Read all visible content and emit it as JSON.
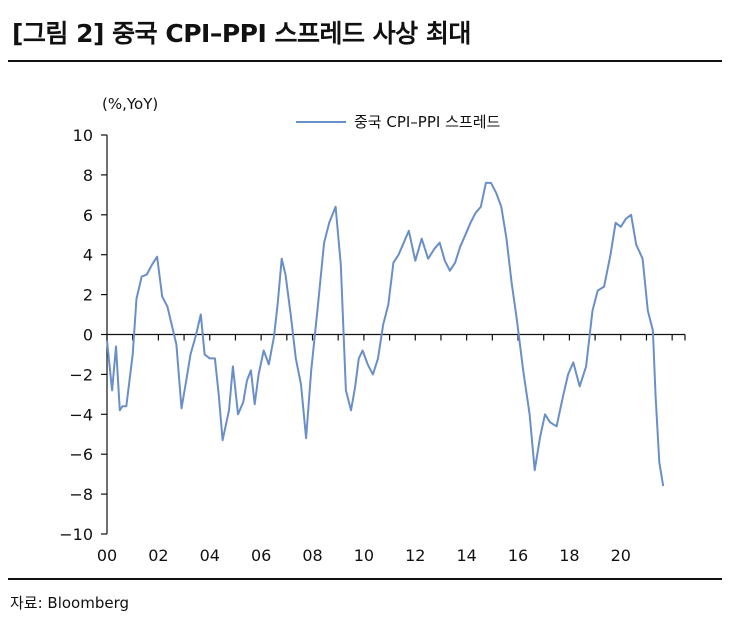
{
  "header": {
    "title": "[그림 2] 중국 CPI–PPI 스프레드 사상 최대"
  },
  "footer": {
    "source": "자료: Bloomberg"
  },
  "colors": {
    "series": "#6a8fc8",
    "axis": "#111111",
    "text": "#111111"
  },
  "chart_data": {
    "type": "line",
    "title": "",
    "ylabel": "(%,YoY)",
    "xlabel": "",
    "ylim": [
      -10,
      10
    ],
    "yticks": [
      -10,
      -8,
      -6,
      -4,
      -2,
      0,
      2,
      4,
      6,
      8,
      10
    ],
    "ytick_labels": [
      "−10",
      "−8",
      "−6",
      "−4",
      "−2",
      "0",
      "2",
      "4",
      "6",
      "8",
      "10"
    ],
    "xlim": [
      2000,
      2022.5
    ],
    "xticks": [
      2000,
      2002,
      2004,
      2006,
      2008,
      2010,
      2012,
      2014,
      2016,
      2018,
      2020
    ],
    "xtick_labels": [
      "00",
      "02",
      "04",
      "06",
      "08",
      "10",
      "12",
      "14",
      "16",
      "18",
      "20"
    ],
    "grid": false,
    "legend_position": "top-center",
    "series": [
      {
        "name": "중국 CPI–PPI 스프레드",
        "x": [
          2000.0,
          2000.2,
          2000.35,
          2000.5,
          2000.6,
          2000.75,
          2001.0,
          2001.15,
          2001.35,
          2001.55,
          2001.75,
          2001.95,
          2002.15,
          2002.35,
          2002.5,
          2002.7,
          2002.9,
          2003.1,
          2003.25,
          2003.45,
          2003.65,
          2003.8,
          2004.0,
          2004.2,
          2004.35,
          2004.5,
          2004.75,
          2004.9,
          2005.1,
          2005.3,
          2005.45,
          2005.6,
          2005.75,
          2005.9,
          2006.1,
          2006.3,
          2006.5,
          2006.65,
          2006.8,
          2006.95,
          2007.15,
          2007.35,
          2007.55,
          2007.75,
          2007.95,
          2008.2,
          2008.45,
          2008.65,
          2008.9,
          2009.1,
          2009.3,
          2009.5,
          2009.65,
          2009.8,
          2009.95,
          2010.15,
          2010.35,
          2010.55,
          2010.75,
          2010.95,
          2011.15,
          2011.35,
          2011.55,
          2011.75,
          2012.0,
          2012.25,
          2012.5,
          2012.75,
          2012.95,
          2013.15,
          2013.35,
          2013.55,
          2013.75,
          2013.95,
          2014.15,
          2014.35,
          2014.55,
          2014.75,
          2014.95,
          2015.15,
          2015.35,
          2015.55,
          2015.75,
          2015.95,
          2016.2,
          2016.45,
          2016.65,
          2016.85,
          2017.05,
          2017.25,
          2017.5,
          2017.75,
          2017.95,
          2018.15,
          2018.4,
          2018.65,
          2018.9,
          2019.1,
          2019.35,
          2019.6,
          2019.8,
          2020.0,
          2020.2,
          2020.4,
          2020.6,
          2020.85,
          2021.05,
          2021.25,
          2021.35,
          2021.5,
          2021.65
        ],
        "values": [
          -0.3,
          -2.8,
          -0.6,
          -3.8,
          -3.6,
          -3.6,
          -1.0,
          1.8,
          2.9,
          3.0,
          3.5,
          3.9,
          1.9,
          1.4,
          0.6,
          -0.5,
          -3.7,
          -2.2,
          -1.0,
          -0.1,
          1.0,
          -1.0,
          -1.2,
          -1.2,
          -3.0,
          -5.3,
          -3.8,
          -1.6,
          -4.0,
          -3.4,
          -2.3,
          -1.8,
          -3.5,
          -2.0,
          -0.8,
          -1.5,
          -0.1,
          1.6,
          3.8,
          3.0,
          1.0,
          -1.2,
          -2.5,
          -5.2,
          -1.8,
          1.3,
          4.6,
          5.6,
          6.4,
          3.5,
          -2.8,
          -3.8,
          -2.7,
          -1.2,
          -0.8,
          -1.5,
          -2.0,
          -1.2,
          0.5,
          1.5,
          3.6,
          4.0,
          4.6,
          5.2,
          3.7,
          4.8,
          3.8,
          4.3,
          4.6,
          3.7,
          3.2,
          3.6,
          4.4,
          5.0,
          5.6,
          6.1,
          6.4,
          7.6,
          7.6,
          7.1,
          6.4,
          4.8,
          2.6,
          0.8,
          -1.8,
          -4.0,
          -6.8,
          -5.2,
          -4.0,
          -4.4,
          -4.6,
          -3.1,
          -2.0,
          -1.4,
          -2.6,
          -1.6,
          1.2,
          2.2,
          2.4,
          4.0,
          5.6,
          5.4,
          5.8,
          6.0,
          4.5,
          3.8,
          1.2,
          0.2,
          -3.0,
          -6.4,
          -7.6
        ]
      }
    ]
  }
}
